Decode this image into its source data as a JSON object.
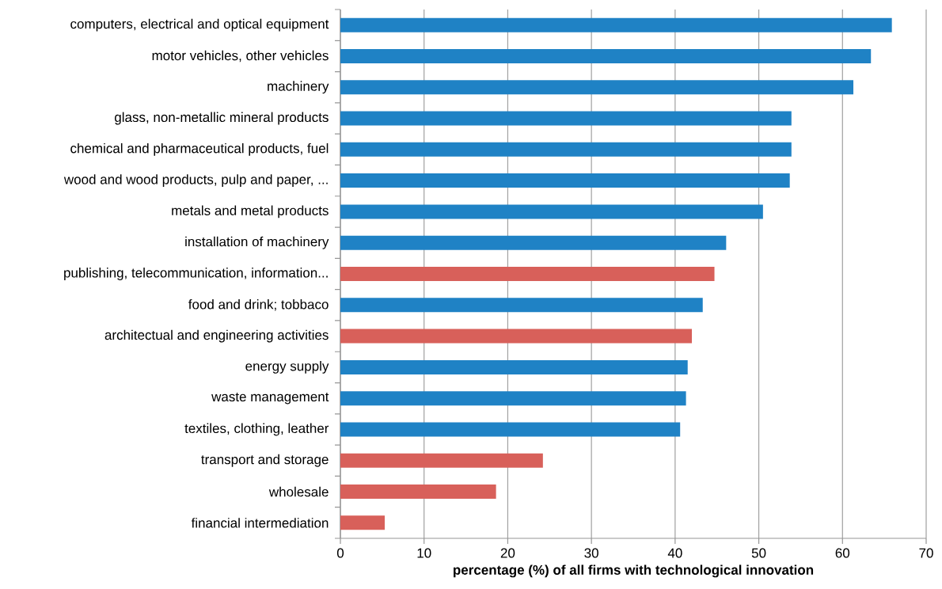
{
  "chart_data": {
    "type": "bar",
    "orientation": "horizontal",
    "categories": [
      "computers, electrical and optical equipment",
      "motor vehicles, other vehicles",
      "machinery",
      "glass, non-metallic mineral products",
      "chemical and pharmaceutical products, fuel",
      "wood and wood products, pulp and paper, ...",
      "metals and metal products",
      "installation of machinery",
      "publishing, telecommunication, information...",
      "food and drink; tobbaco",
      "architectual and engineering activities",
      "energy supply",
      "waste management",
      "textiles, clothing, leather",
      "transport and storage",
      "wholesale",
      "financial intermediation"
    ],
    "values": [
      65.9,
      63.4,
      61.3,
      53.9,
      53.9,
      53.7,
      50.5,
      46.1,
      44.7,
      43.3,
      42.0,
      41.5,
      41.3,
      40.6,
      24.2,
      18.6,
      5.3
    ],
    "colors": [
      "#1f82c5",
      "#1f82c5",
      "#1f82c5",
      "#1f82c5",
      "#1f82c5",
      "#1f82c5",
      "#1f82c5",
      "#1f82c5",
      "#d8605a",
      "#1f82c5",
      "#d8605a",
      "#1f82c5",
      "#1f82c5",
      "#1f82c5",
      "#d8605a",
      "#d8605a",
      "#d8605a"
    ],
    "xlabel": "percentage (%) of all firms with technological innovation",
    "xlim": [
      0,
      70
    ],
    "xticks": [
      0,
      10,
      20,
      30,
      40,
      50,
      60,
      70
    ],
    "grid": "x"
  }
}
